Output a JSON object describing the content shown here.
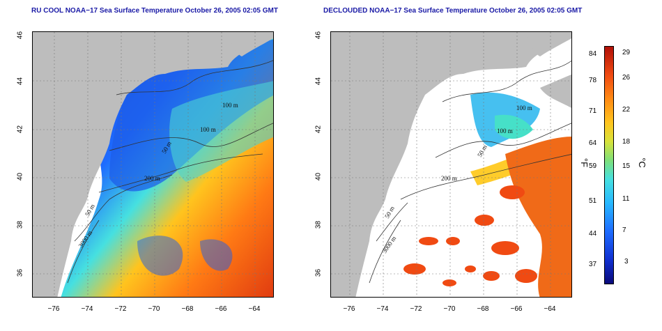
{
  "titles": {
    "left": "RU COOL NOAA−17 Sea Surface Temperature October 26, 2005 02:05 GMT",
    "right": "DECLOUDED NOAA−17 Sea Surface Temperature October 26, 2005 02:05 GMT"
  },
  "axes": {
    "lat_ticks": [
      "46",
      "44",
      "42",
      "40",
      "38",
      "36"
    ],
    "lon_ticks": [
      "−76",
      "−74",
      "−72",
      "−70",
      "−68",
      "−66",
      "−64"
    ]
  },
  "contours": {
    "left": [
      "100 m",
      "100 m",
      "50 m",
      "200 m",
      "50 m",
      "3000 m"
    ],
    "right": [
      "100 m",
      "100 m",
      "50 m",
      "200 m",
      "50 m",
      "3000 m"
    ]
  },
  "colorbar": {
    "fahrenheit_ticks": [
      "84",
      "78",
      "71",
      "64",
      "59",
      "51",
      "44",
      "37"
    ],
    "celsius_ticks": [
      "29",
      "26",
      "22",
      "18",
      "15",
      "11",
      "7",
      "3"
    ],
    "unit_f": "°F",
    "unit_c": "°C"
  },
  "colors": {
    "land": "#bdbdbd",
    "title": "#1a1aa6",
    "cold": "#1030d0",
    "warm": "#f04a12"
  }
}
